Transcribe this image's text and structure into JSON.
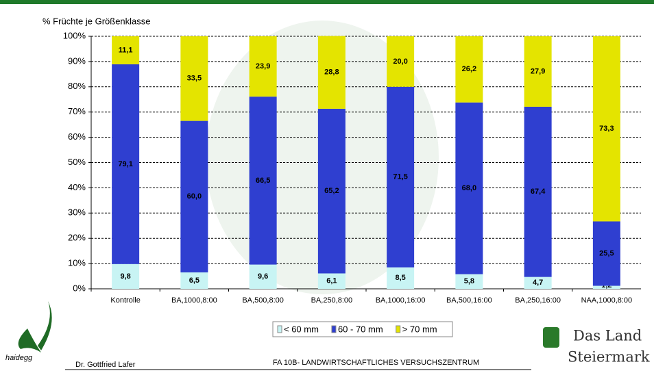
{
  "chart_data": {
    "type": "stacked-bar",
    "title": "% Früchte je Größenklasse",
    "categories": [
      "Kontrolle",
      "BA,1000,8:00",
      "BA,500,8:00",
      "BA,250,8:00",
      "BA,1000,16:00",
      "BA,500,16:00",
      "BA,250,16:00",
      "NAA,1000,8:00"
    ],
    "series": [
      {
        "name": "< 60 mm",
        "color": "#c8f4f4",
        "values": [
          9.8,
          6.5,
          9.6,
          6.1,
          8.5,
          5.8,
          4.7,
          1.2
        ],
        "value_labels": [
          "9,8",
          "6,5",
          "9,6",
          "6,1",
          "8,5",
          "5,8",
          "4,7",
          "1,2"
        ]
      },
      {
        "name": "60 - 70 mm",
        "color": "#2f3fd0",
        "values": [
          79.1,
          60.0,
          66.5,
          65.2,
          71.5,
          68.0,
          67.4,
          25.5
        ],
        "value_labels": [
          "79,1",
          "60,0",
          "66,5",
          "65,2",
          "71,5",
          "68,0",
          "67,4",
          "25,5"
        ]
      },
      {
        "name": "> 70 mm",
        "color": "#e4e400",
        "values": [
          11.1,
          33.5,
          23.9,
          28.8,
          20.0,
          26.2,
          27.9,
          73.3
        ],
        "value_labels": [
          "11,1",
          "33,5",
          "23,9",
          "28,8",
          "20,0",
          "26,2",
          "27,9",
          "73,3"
        ]
      }
    ],
    "ylim": [
      0,
      100
    ],
    "yticks": [
      {
        "value": 0,
        "label": "0%"
      },
      {
        "value": 10,
        "label": "10%"
      },
      {
        "value": 20,
        "label": "20%"
      },
      {
        "value": 30,
        "label": "30%"
      },
      {
        "value": 40,
        "label": "40%"
      },
      {
        "value": 50,
        "label": "50%"
      },
      {
        "value": 60,
        "label": "60%"
      },
      {
        "value": 70,
        "label": "70%"
      },
      {
        "value": 80,
        "label": "80%"
      },
      {
        "value": 90,
        "label": "90%"
      },
      {
        "value": 100,
        "label": "100%"
      }
    ],
    "grid": true,
    "legend": "bottom"
  },
  "footer": {
    "logo": "haidegg",
    "author": "Dr. Gottfried Lafer",
    "institution": "FA 10B- LANDWIRTSCHAFTLICHES VERSUCHSZENTRUM",
    "brand_line1": "Das Land",
    "brand_line2": "Steiermark"
  }
}
